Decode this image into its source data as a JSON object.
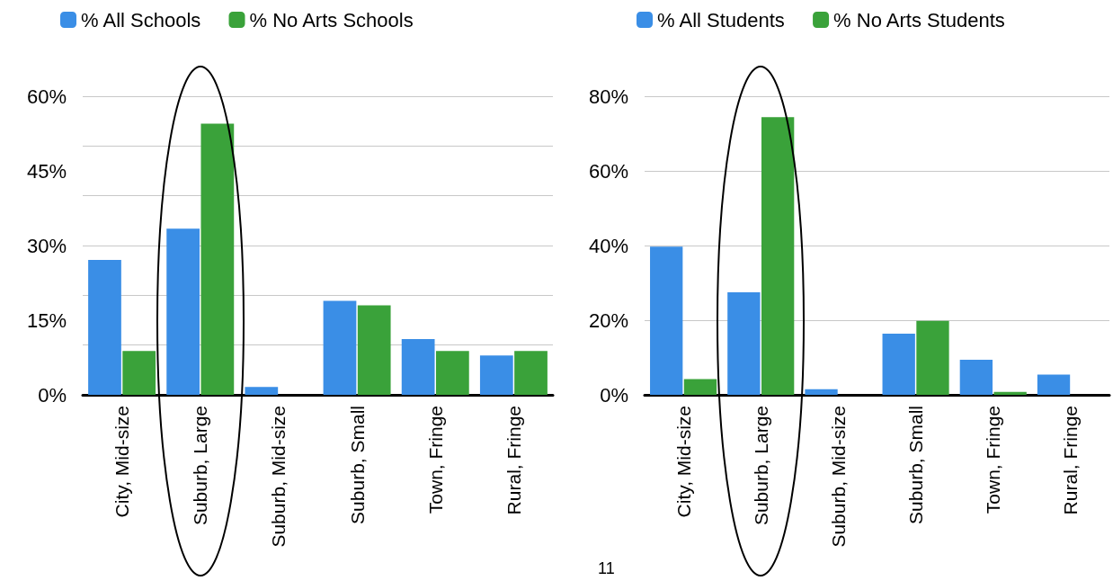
{
  "chart_data": [
    {
      "type": "bar",
      "categories": [
        "City, Mid-size",
        "Suburb, Large",
        "Suburb, Mid-size",
        "Suburb, Small",
        "Town, Fringe",
        "Rural, Fringe"
      ],
      "series": [
        {
          "name": "% All Schools",
          "color": "#3a8ee6",
          "values": [
            27.1,
            33.4,
            1.6,
            18.9,
            11.2,
            7.9
          ]
        },
        {
          "name": "% No Arts Schools",
          "color": "#3aa23a",
          "values": [
            8.8,
            54.5,
            0,
            18.0,
            8.8,
            8.8
          ]
        }
      ],
      "ylim": [
        0,
        60
      ],
      "yticks": [
        {
          "value": 0,
          "label": "0%"
        },
        {
          "value": 15,
          "label": "15%"
        },
        {
          "value": 30,
          "label": "30%"
        },
        {
          "value": 45,
          "label": "45%"
        },
        {
          "value": 60,
          "label": "60%"
        }
      ],
      "grid": "y",
      "legend": "top left"
    },
    {
      "type": "bar",
      "categories": [
        "City, Mid-size",
        "Suburb, Large",
        "Suburb, Mid-size",
        "Suburb, Small",
        "Town, Fringe",
        "Rural, Fringe"
      ],
      "series": [
        {
          "name": "% All Students",
          "color": "#3a8ee6",
          "values": [
            39.7,
            27.5,
            1.5,
            16.4,
            9.4,
            5.4
          ]
        },
        {
          "name": "% No Arts Students",
          "color": "#3aa23a",
          "values": [
            4.2,
            74.4,
            0,
            19.8,
            0.8,
            0
          ]
        }
      ],
      "ylim": [
        0,
        80
      ],
      "yticks": [
        {
          "value": 0,
          "label": "0%"
        },
        {
          "value": 20,
          "label": "20%"
        },
        {
          "value": 40,
          "label": "40%"
        },
        {
          "value": 60,
          "label": "60%"
        },
        {
          "value": 80,
          "label": "80%"
        }
      ],
      "grid": "y",
      "legend": "top left",
      "annotations": [
        "11"
      ]
    }
  ]
}
